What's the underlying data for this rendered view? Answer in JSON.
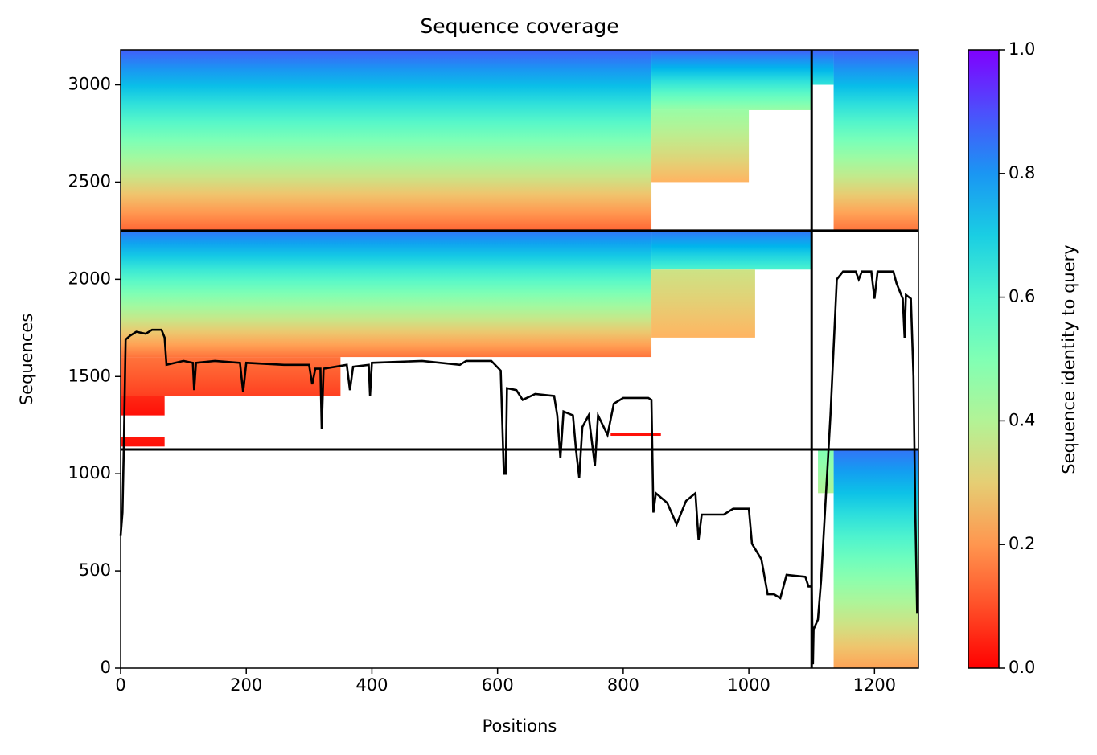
{
  "chart_data": {
    "type": "coverage",
    "title": "Sequence coverage",
    "xlabel": "Positions",
    "ylabel": "Sequences",
    "xlim": [
      0,
      1270
    ],
    "ylim": [
      0,
      3180
    ],
    "xticks": [
      0,
      200,
      400,
      600,
      800,
      1000,
      1200
    ],
    "yticks": [
      0,
      500,
      1000,
      1500,
      2000,
      2500,
      3000
    ],
    "colormap": "rainbow_r",
    "colorbar": {
      "label": "Sequence identity to query",
      "lim": [
        0,
        1
      ],
      "ticks": [
        {
          "value": 0,
          "label": "0.0"
        },
        0.2,
        0.4,
        0.6,
        0.8,
        {
          "value": 1,
          "label": "1.0"
        }
      ]
    },
    "blocks": [
      {
        "x": [
          0,
          845
        ],
        "y": [
          2250,
          3180
        ],
        "identity": [
          0.13,
          0.88
        ]
      },
      {
        "x": [
          845,
          1100
        ],
        "y": [
          2870,
          3180
        ],
        "identity": [
          0.45,
          0.88
        ]
      },
      {
        "x": [
          845,
          1000
        ],
        "y": [
          2500,
          2870
        ],
        "identity": [
          0.25,
          0.45
        ]
      },
      {
        "x": [
          1135,
          1270
        ],
        "y": [
          2250,
          3180
        ],
        "identity": [
          0.15,
          0.88
        ]
      },
      {
        "x": [
          1100,
          1135
        ],
        "y": [
          3000,
          3180
        ],
        "identity": [
          0.65,
          0.88
        ]
      },
      {
        "x": [
          0,
          845
        ],
        "y": [
          1600,
          2250
        ],
        "identity": [
          0.15,
          0.85
        ]
      },
      {
        "x": [
          845,
          1100
        ],
        "y": [
          2050,
          2250
        ],
        "identity": [
          0.6,
          0.85
        ]
      },
      {
        "x": [
          845,
          1010
        ],
        "y": [
          1700,
          2050
        ],
        "identity": [
          0.25,
          0.35
        ]
      },
      {
        "x": [
          0,
          350
        ],
        "y": [
          1400,
          1600
        ],
        "identity": [
          0.08,
          0.15
        ]
      },
      {
        "x": [
          0,
          70
        ],
        "y": [
          1300,
          1400
        ],
        "identity": [
          0.02,
          0.05
        ]
      },
      {
        "x": [
          0,
          70
        ],
        "y": [
          1140,
          1190
        ],
        "identity": [
          0.02,
          0.03
        ]
      },
      {
        "x": [
          780,
          860
        ],
        "y": [
          1195,
          1210
        ],
        "identity": [
          0.02,
          0.02
        ]
      },
      {
        "x": [
          1135,
          1270
        ],
        "y": [
          0,
          1125
        ],
        "identity": [
          0.22,
          0.85
        ]
      },
      {
        "x": [
          1110,
          1135
        ],
        "y": [
          900,
          1125
        ],
        "identity": [
          0.4,
          0.5
        ]
      }
    ],
    "chain_boundaries": {
      "x": [
        1100
      ],
      "y": [
        1125,
        2250
      ]
    },
    "coverage": {
      "color": "#000000",
      "x": [
        0,
        3,
        5,
        8,
        15,
        25,
        40,
        50,
        65,
        70,
        73,
        100,
        115,
        117,
        120,
        150,
        190,
        195,
        200,
        260,
        300,
        305,
        310,
        318,
        320,
        323,
        360,
        365,
        370,
        395,
        397,
        400,
        480,
        540,
        550,
        590,
        605,
        610,
        613,
        615,
        630,
        640,
        660,
        690,
        695,
        700,
        705,
        720,
        725,
        730,
        735,
        745,
        755,
        760,
        775,
        785,
        800,
        840,
        845,
        848,
        852,
        870,
        885,
        900,
        915,
        920,
        925,
        960,
        975,
        1000,
        1005,
        1020,
        1030,
        1040,
        1050,
        1060,
        1090,
        1095,
        1100,
        1102,
        1103,
        1110,
        1115,
        1130,
        1140,
        1150,
        1170,
        1175,
        1180,
        1195,
        1200,
        1205,
        1230,
        1235,
        1245,
        1248,
        1250,
        1258,
        1262,
        1265,
        1268
      ],
      "values": [
        680,
        800,
        1120,
        1690,
        1710,
        1730,
        1720,
        1740,
        1740,
        1700,
        1560,
        1580,
        1570,
        1430,
        1570,
        1580,
        1570,
        1420,
        1570,
        1560,
        1560,
        1460,
        1540,
        1540,
        1230,
        1540,
        1560,
        1430,
        1550,
        1560,
        1400,
        1570,
        1580,
        1560,
        1580,
        1580,
        1530,
        1000,
        1000,
        1440,
        1430,
        1380,
        1410,
        1400,
        1300,
        1080,
        1320,
        1300,
        1120,
        980,
        1240,
        1300,
        1040,
        1300,
        1200,
        1360,
        1390,
        1390,
        1380,
        800,
        900,
        850,
        740,
        860,
        900,
        660,
        790,
        790,
        820,
        820,
        640,
        560,
        380,
        380,
        360,
        480,
        470,
        420,
        420,
        20,
        200,
        250,
        450,
        1300,
        2000,
        2040,
        2040,
        2000,
        2040,
        2040,
        1900,
        2040,
        2040,
        1980,
        1900,
        1700,
        1920,
        1900,
        1500,
        800,
        280
      ]
    }
  }
}
